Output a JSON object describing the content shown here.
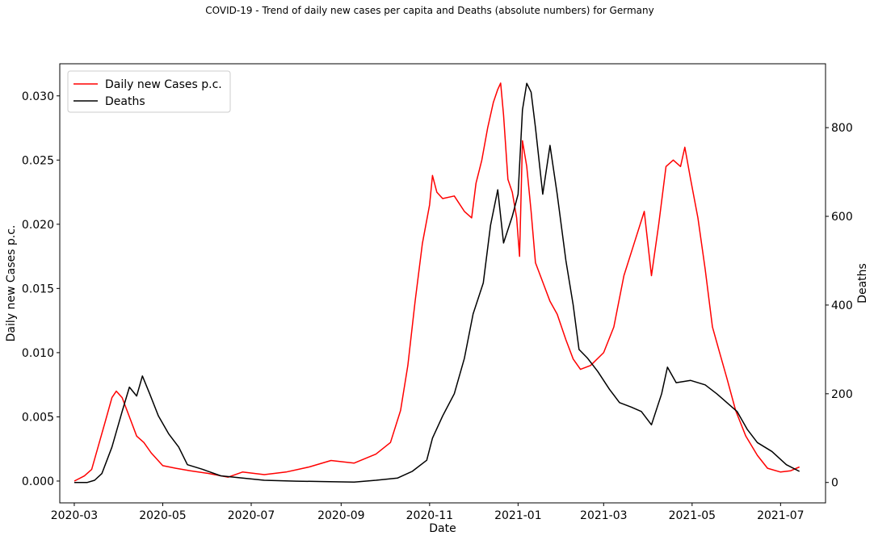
{
  "chart_data": {
    "type": "line",
    "title": "COVID-19 - Trend of daily new cases per capita and Deaths (absolute numbers) for Germany",
    "xlabel": "Date",
    "ylabel_left": "Daily new Cases p.c.",
    "ylabel_right": "Deaths",
    "xlim": [
      "2020-02-20",
      "2021-08-01"
    ],
    "ylim_left": [
      -0.0017,
      0.0325
    ],
    "ylim_right": [
      -46,
      944
    ],
    "x_ticks": [
      "2020-03",
      "2020-05",
      "2020-07",
      "2020-09",
      "2020-11",
      "2021-01",
      "2021-03",
      "2021-05",
      "2021-07"
    ],
    "x_tick_dates": [
      "2020-03-01",
      "2020-05-01",
      "2020-07-01",
      "2020-09-01",
      "2020-11-01",
      "2021-01-01",
      "2021-03-01",
      "2021-05-01",
      "2021-07-01"
    ],
    "y_ticks_left": [
      "0.000",
      "0.005",
      "0.010",
      "0.015",
      "0.020",
      "0.025",
      "0.030"
    ],
    "y_tick_values_left": [
      0,
      0.005,
      0.01,
      0.015,
      0.02,
      0.025,
      0.03
    ],
    "y_ticks_right": [
      "0",
      "200",
      "400",
      "600",
      "800"
    ],
    "y_tick_values_right": [
      0,
      200,
      400,
      600,
      800
    ],
    "grid": false,
    "legend_position": "top-left",
    "series": [
      {
        "name": "Daily new Cases p.c.",
        "axis": "left",
        "color": "#ff0000",
        "points": [
          [
            "2020-03-01",
            0.0
          ],
          [
            "2020-03-08",
            0.0004
          ],
          [
            "2020-03-13",
            0.0009
          ],
          [
            "2020-03-17",
            0.0025
          ],
          [
            "2020-03-22",
            0.0045
          ],
          [
            "2020-03-27",
            0.0065
          ],
          [
            "2020-03-30",
            0.007
          ],
          [
            "2020-04-03",
            0.0065
          ],
          [
            "2020-04-08",
            0.005
          ],
          [
            "2020-04-13",
            0.0035
          ],
          [
            "2020-04-18",
            0.003
          ],
          [
            "2020-04-23",
            0.0022
          ],
          [
            "2020-05-01",
            0.0012
          ],
          [
            "2020-05-10",
            0.001
          ],
          [
            "2020-05-20",
            0.0008
          ],
          [
            "2020-06-01",
            0.0006
          ],
          [
            "2020-06-15",
            0.0003
          ],
          [
            "2020-06-25",
            0.0007
          ],
          [
            "2020-07-10",
            0.0005
          ],
          [
            "2020-07-25",
            0.0007
          ],
          [
            "2020-08-10",
            0.0011
          ],
          [
            "2020-08-25",
            0.0016
          ],
          [
            "2020-09-10",
            0.0014
          ],
          [
            "2020-09-25",
            0.0021
          ],
          [
            "2020-10-05",
            0.003
          ],
          [
            "2020-10-12",
            0.0055
          ],
          [
            "2020-10-17",
            0.009
          ],
          [
            "2020-10-22",
            0.014
          ],
          [
            "2020-10-27",
            0.0185
          ],
          [
            "2020-11-01",
            0.0215
          ],
          [
            "2020-11-03",
            0.0238
          ],
          [
            "2020-11-06",
            0.0225
          ],
          [
            "2020-11-10",
            0.022
          ],
          [
            "2020-11-18",
            0.0222
          ],
          [
            "2020-11-25",
            0.021
          ],
          [
            "2020-11-30",
            0.0205
          ],
          [
            "2020-12-03",
            0.0232
          ],
          [
            "2020-12-07",
            0.025
          ],
          [
            "2020-12-11",
            0.0275
          ],
          [
            "2020-12-15",
            0.0295
          ],
          [
            "2020-12-18",
            0.0305
          ],
          [
            "2020-12-20",
            0.031
          ],
          [
            "2020-12-22",
            0.0285
          ],
          [
            "2020-12-25",
            0.0235
          ],
          [
            "2020-12-28",
            0.0225
          ],
          [
            "2020-12-31",
            0.0205
          ],
          [
            "2021-01-02",
            0.0175
          ],
          [
            "2021-01-04",
            0.0265
          ],
          [
            "2021-01-07",
            0.0245
          ],
          [
            "2021-01-10",
            0.021
          ],
          [
            "2021-01-13",
            0.017
          ],
          [
            "2021-01-18",
            0.0155
          ],
          [
            "2021-01-23",
            0.014
          ],
          [
            "2021-01-28",
            0.013
          ],
          [
            "2021-02-03",
            0.011
          ],
          [
            "2021-02-08",
            0.0095
          ],
          [
            "2021-02-13",
            0.0087
          ],
          [
            "2021-02-20",
            0.009
          ],
          [
            "2021-03-01",
            0.01
          ],
          [
            "2021-03-08",
            0.012
          ],
          [
            "2021-03-15",
            0.016
          ],
          [
            "2021-03-22",
            0.0185
          ],
          [
            "2021-03-29",
            0.021
          ],
          [
            "2021-04-03",
            0.016
          ],
          [
            "2021-04-08",
            0.02
          ],
          [
            "2021-04-13",
            0.0245
          ],
          [
            "2021-04-18",
            0.025
          ],
          [
            "2021-04-23",
            0.0245
          ],
          [
            "2021-04-26",
            0.026
          ],
          [
            "2021-04-30",
            0.0235
          ],
          [
            "2021-05-05",
            0.0205
          ],
          [
            "2021-05-10",
            0.0165
          ],
          [
            "2021-05-15",
            0.012
          ],
          [
            "2021-05-20",
            0.01
          ],
          [
            "2021-05-25",
            0.008
          ],
          [
            "2021-05-31",
            0.0055
          ],
          [
            "2021-06-07",
            0.0035
          ],
          [
            "2021-06-15",
            0.002
          ],
          [
            "2021-06-22",
            0.001
          ],
          [
            "2021-07-01",
            0.0007
          ],
          [
            "2021-07-08",
            0.0008
          ],
          [
            "2021-07-14",
            0.0011
          ]
        ]
      },
      {
        "name": "Deaths",
        "axis": "right",
        "color": "#000000",
        "points": [
          [
            "2020-03-01",
            0
          ],
          [
            "2020-03-10",
            0
          ],
          [
            "2020-03-15",
            5
          ],
          [
            "2020-03-20",
            20
          ],
          [
            "2020-03-27",
            80
          ],
          [
            "2020-04-03",
            160
          ],
          [
            "2020-04-08",
            215
          ],
          [
            "2020-04-13",
            195
          ],
          [
            "2020-04-17",
            240
          ],
          [
            "2020-04-22",
            200
          ],
          [
            "2020-04-28",
            150
          ],
          [
            "2020-05-05",
            110
          ],
          [
            "2020-05-12",
            80
          ],
          [
            "2020-05-18",
            40
          ],
          [
            "2020-05-28",
            30
          ],
          [
            "2020-06-10",
            15
          ],
          [
            "2020-06-25",
            10
          ],
          [
            "2020-07-10",
            5
          ],
          [
            "2020-08-01",
            3
          ],
          [
            "2020-08-20",
            2
          ],
          [
            "2020-09-10",
            1
          ],
          [
            "2020-09-25",
            5
          ],
          [
            "2020-10-10",
            10
          ],
          [
            "2020-10-20",
            25
          ],
          [
            "2020-10-30",
            50
          ],
          [
            "2020-11-03",
            100
          ],
          [
            "2020-11-10",
            150
          ],
          [
            "2020-11-18",
            200
          ],
          [
            "2020-11-25",
            280
          ],
          [
            "2020-12-01",
            380
          ],
          [
            "2020-12-08",
            450
          ],
          [
            "2020-12-13",
            580
          ],
          [
            "2020-12-18",
            660
          ],
          [
            "2020-12-22",
            540
          ],
          [
            "2020-12-28",
            600
          ],
          [
            "2021-01-01",
            650
          ],
          [
            "2021-01-04",
            840
          ],
          [
            "2021-01-07",
            900
          ],
          [
            "2021-01-10",
            880
          ],
          [
            "2021-01-13",
            800
          ],
          [
            "2021-01-18",
            650
          ],
          [
            "2021-01-23",
            760
          ],
          [
            "2021-01-28",
            650
          ],
          [
            "2021-02-03",
            500
          ],
          [
            "2021-02-08",
            400
          ],
          [
            "2021-02-12",
            300
          ],
          [
            "2021-02-18",
            280
          ],
          [
            "2021-02-25",
            250
          ],
          [
            "2021-03-05",
            210
          ],
          [
            "2021-03-12",
            180
          ],
          [
            "2021-03-20",
            170
          ],
          [
            "2021-03-27",
            160
          ],
          [
            "2021-04-03",
            130
          ],
          [
            "2021-04-10",
            200
          ],
          [
            "2021-04-14",
            260
          ],
          [
            "2021-04-20",
            225
          ],
          [
            "2021-04-30",
            230
          ],
          [
            "2021-05-10",
            220
          ],
          [
            "2021-05-18",
            200
          ],
          [
            "2021-05-25",
            180
          ],
          [
            "2021-06-01",
            160
          ],
          [
            "2021-06-08",
            120
          ],
          [
            "2021-06-15",
            90
          ],
          [
            "2021-06-25",
            70
          ],
          [
            "2021-07-05",
            40
          ],
          [
            "2021-07-14",
            25
          ]
        ]
      }
    ]
  }
}
